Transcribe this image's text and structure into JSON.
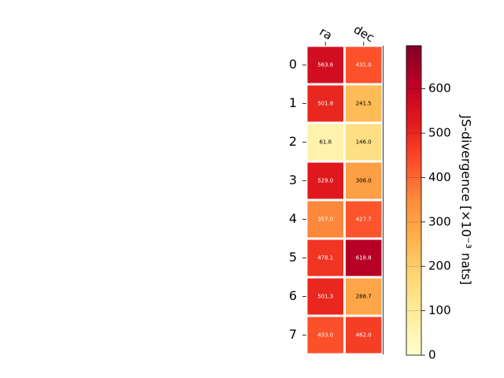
{
  "chart_data": {
    "type": "heatmap",
    "columns": [
      "ra",
      "dec"
    ],
    "rows": [
      "0",
      "1",
      "2",
      "3",
      "4",
      "5",
      "6",
      "7"
    ],
    "values": [
      [
        563.6,
        431.0
      ],
      [
        501.8,
        241.5
      ],
      [
        61.8,
        146.0
      ],
      [
        529.0,
        306.0
      ],
      [
        357.0,
        427.7
      ],
      [
        478.1,
        618.8
      ],
      [
        501.3,
        288.7
      ],
      [
        433.0,
        462.0
      ]
    ],
    "value_labels": [
      [
        "563.6",
        "431.0"
      ],
      [
        "501.8",
        "241.5"
      ],
      [
        "61.8",
        "146.0"
      ],
      [
        "529.0",
        "306.0"
      ],
      [
        "357.0",
        "427.7"
      ],
      [
        "478.1",
        "618.8"
      ],
      [
        "501.3",
        "288.7"
      ],
      [
        "433.0",
        "462.0"
      ]
    ],
    "colorbar": {
      "label": "JS-divergence [×10⁻³ nats]",
      "range": [
        0,
        697
      ],
      "ticks": [
        "0",
        "100",
        "200",
        "300",
        "400",
        "500",
        "600"
      ],
      "colormap": "YlOrRd"
    },
    "grid": false,
    "legend": "colorbar-right"
  }
}
